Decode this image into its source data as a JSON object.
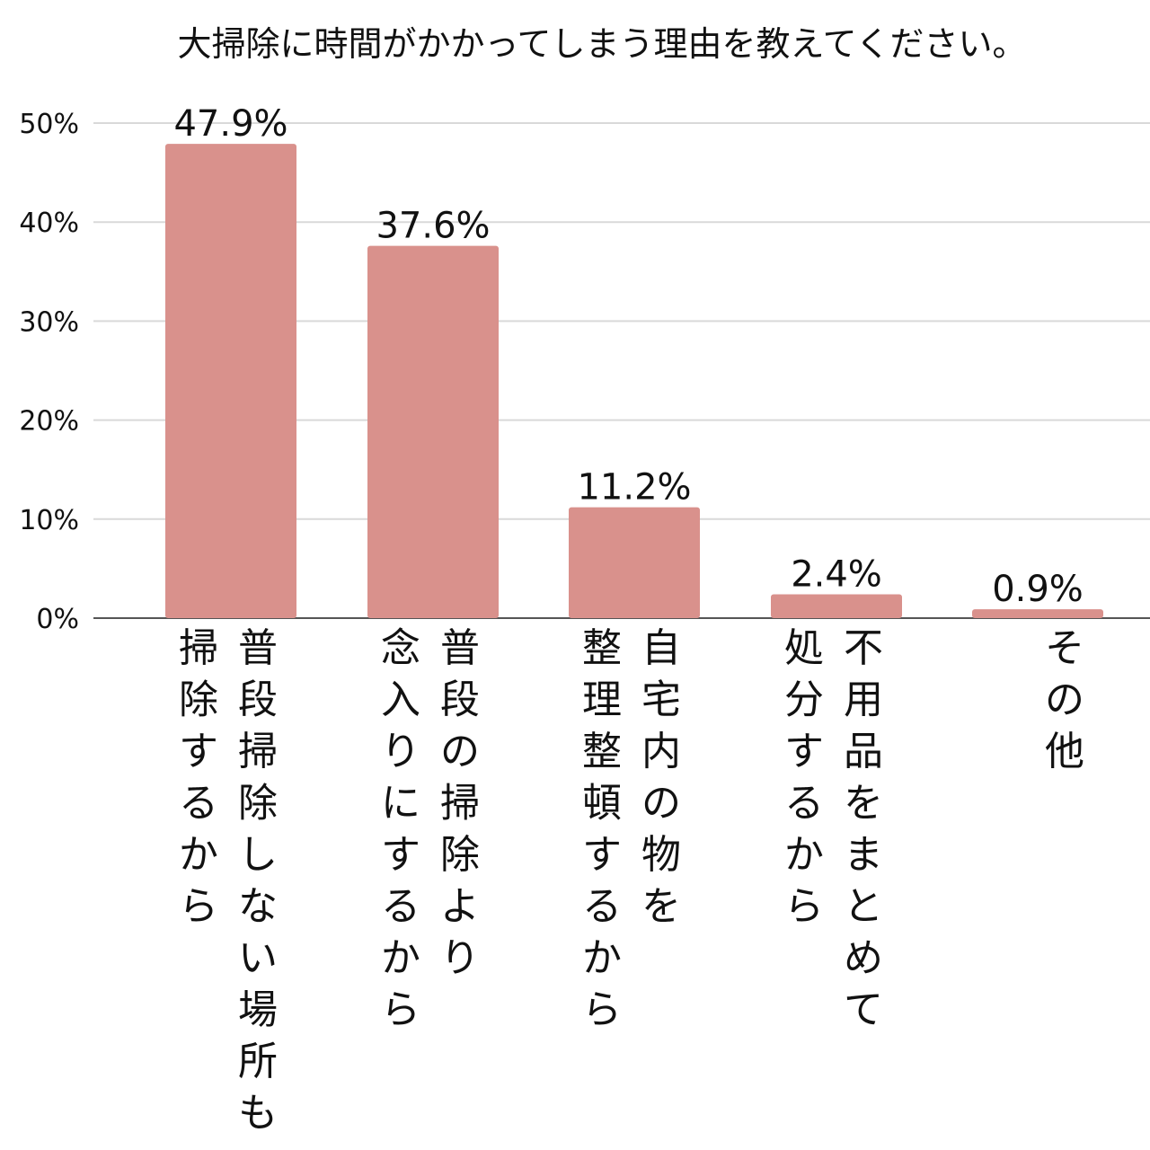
{
  "chart_data": {
    "type": "bar",
    "title": "大掃除に時間がかかってしまう理由を教えてください。",
    "categories": [
      "普段掃除しない場所も掃除するから",
      "普段の掃除より念入りにするから",
      "自宅内の物を整理整頓するから",
      "不用品をまとめて処分するから",
      "その他"
    ],
    "category_label_lines": [
      [
        "普段掃除しない場所も",
        "掃除するから"
      ],
      [
        "普段の掃除より",
        "念入りにするから"
      ],
      [
        "自宅内の物を",
        "整理整頓するから"
      ],
      [
        "不用品をまとめて",
        "処分するから"
      ],
      [
        "その他"
      ]
    ],
    "values": [
      47.9,
      37.6,
      11.2,
      2.4,
      0.9
    ],
    "data_labels": [
      "47.9%",
      "37.6%",
      "11.2%",
      "2.4%",
      "0.9%"
    ],
    "ylim": [
      0,
      50
    ],
    "yticks": [
      0,
      10,
      20,
      30,
      40,
      50
    ],
    "ytick_labels": [
      "0%",
      "10%",
      "20%",
      "30%",
      "40%",
      "50%"
    ],
    "xlabel": "",
    "ylabel": "",
    "grid": true,
    "legend": "none",
    "bar_color": "#d9918c",
    "grid_color": "#d9d9d9",
    "axis_color": "#555555"
  }
}
